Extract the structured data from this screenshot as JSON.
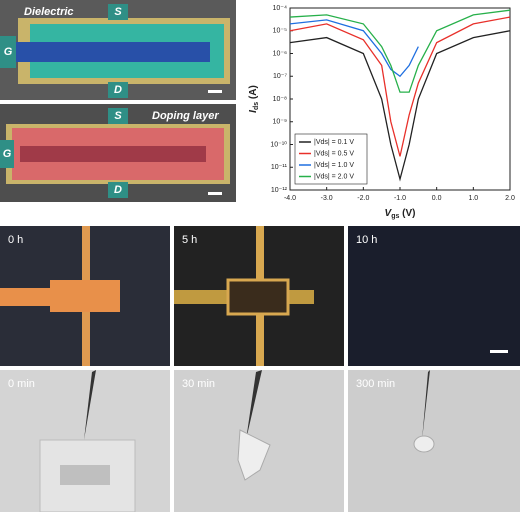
{
  "chart_data": {
    "type": "line",
    "x_label": {
      "main": "V",
      "sub": "gs",
      "unit": "(V)"
    },
    "y_label": {
      "main": "I",
      "sub": "ds",
      "unit": "(A)"
    },
    "x": [
      -4,
      -3,
      -2,
      -1.5,
      -1.25,
      -1,
      -0.75,
      -0.5,
      0,
      1,
      2
    ],
    "series": [
      {
        "name": "|Vds| = 0.1 V",
        "color": "#222222",
        "values": [
          3e-06,
          5e-06,
          1e-06,
          1e-08,
          1e-10,
          3e-12,
          1e-10,
          1e-08,
          1e-06,
          5e-06,
          1e-05
        ]
      },
      {
        "name": "|Vds| = 0.5 V",
        "color": "#e8302a",
        "values": [
          1e-05,
          2e-05,
          4e-06,
          3e-07,
          1e-09,
          3e-11,
          2e-09,
          5e-08,
          3e-06,
          2e-05,
          4e-05
        ]
      },
      {
        "name": "|Vds| = 1.0 V",
        "color": "#1f6fe0",
        "values": [
          2e-05,
          3e-05,
          1e-05,
          1e-06,
          2e-07,
          1e-07,
          3e-07,
          2e-06,
          null,
          null,
          null
        ]
      },
      {
        "name": "|Vds| = 2.0 V",
        "color": "#27b04a",
        "values": [
          4e-05,
          5e-05,
          2e-05,
          2e-06,
          3e-07,
          2e-08,
          2e-08,
          3e-07,
          1e-05,
          5e-05,
          8e-05
        ]
      }
    ],
    "xlim": [
      -4,
      2
    ],
    "xticks": [
      {
        "value": -4,
        "label": "-4.0"
      },
      {
        "value": -3,
        "label": "-3.0"
      },
      {
        "value": -2,
        "label": "-2.0"
      },
      {
        "value": -1,
        "label": "-1.0"
      },
      {
        "value": 0,
        "label": "0.0"
      },
      {
        "value": 1,
        "label": "1.0"
      },
      {
        "value": 2,
        "label": "2.0"
      }
    ],
    "ylim": [
      1e-12,
      0.0001
    ],
    "yticks": [
      {
        "value": 0.0001,
        "label": "10⁻⁴"
      },
      {
        "value": 1e-05,
        "label": "10⁻⁵"
      },
      {
        "value": 1e-06,
        "label": "10⁻⁶"
      },
      {
        "value": 1e-07,
        "label": "10⁻⁷"
      },
      {
        "value": 1e-08,
        "label": "10⁻⁸"
      },
      {
        "value": 1e-09,
        "label": "10⁻⁹"
      },
      {
        "value": 1e-10,
        "label": "10⁻¹⁰"
      },
      {
        "value": 1e-11,
        "label": "10⁻¹¹"
      },
      {
        "value": 1e-12,
        "label": "10⁻¹²"
      }
    ],
    "log_y": true,
    "legend": "lower-left"
  },
  "panels": {
    "sem_top": {
      "label": "Dielectric",
      "source": "S",
      "gate": "G",
      "drain": "D"
    },
    "sem_bottom": {
      "label": "Doping layer",
      "source": "S",
      "gate": "G",
      "drain": "D"
    },
    "optical": [
      "0 h",
      "5 h",
      "10 h"
    ],
    "photos": [
      "0 min",
      "30 min",
      "300 min"
    ]
  }
}
